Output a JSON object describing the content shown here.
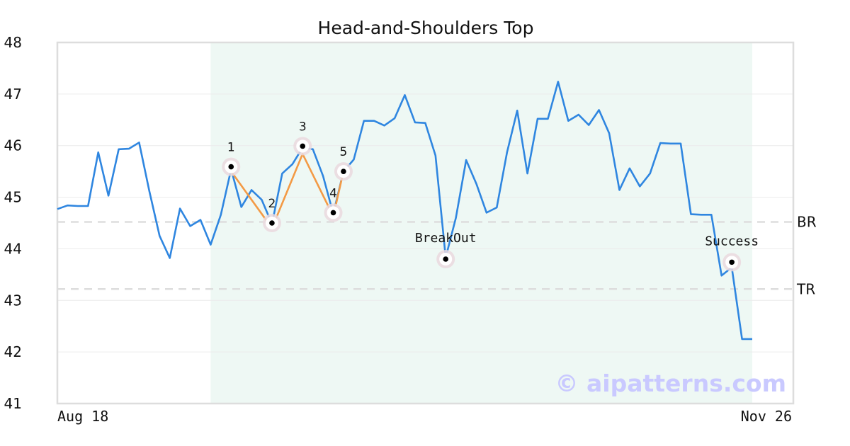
{
  "chart_data": {
    "type": "line",
    "title": "Head-and-Shoulders Top",
    "xlabel": "",
    "ylabel": "",
    "ylim": [
      41,
      48
    ],
    "yticks": [
      41,
      42,
      43,
      44,
      45,
      46,
      47,
      48
    ],
    "x_start_label": "Aug 18",
    "x_end_label": "Nov 26",
    "grid": true,
    "legend": "none",
    "colors": {
      "price": "#2f86e0",
      "pattern": "#f39a45",
      "highlight": "#e8f5f0",
      "marker_halo": "#ead9de",
      "level_line": "#dddddd",
      "watermark": "#c9c9ff",
      "frame": "#dddddd"
    },
    "series": [
      {
        "values": [
          44.77,
          44.84,
          44.83,
          44.83,
          45.87,
          45.03,
          45.93,
          45.94,
          46.06,
          45.12,
          44.25,
          43.82,
          44.78,
          44.44,
          44.56,
          44.08,
          44.66,
          45.54,
          44.81,
          45.14,
          44.95,
          44.48,
          45.46,
          45.64,
          45.96,
          45.93,
          45.41,
          44.68,
          45.5,
          45.73,
          46.48,
          46.48,
          46.39,
          46.53,
          46.98,
          46.45,
          46.44,
          45.81,
          43.83,
          44.6,
          45.72,
          45.26,
          44.7,
          44.8,
          45.87,
          46.68,
          45.46,
          46.52,
          46.52,
          47.24,
          46.48,
          46.6,
          46.4,
          46.69,
          46.24,
          45.14,
          45.56,
          45.21,
          45.46,
          46.05,
          46.04,
          46.04,
          44.67,
          44.66,
          44.66,
          43.48,
          43.64,
          42.25,
          42.25
        ]
      }
    ],
    "pattern_points": [
      {
        "label": "1",
        "index": 17,
        "value": 45.59
      },
      {
        "label": "2",
        "index": 21,
        "value": 44.5
      },
      {
        "label": "3",
        "index": 24,
        "value": 45.99
      },
      {
        "label": "4",
        "index": 27,
        "value": 44.7
      },
      {
        "label": "5",
        "index": 28,
        "value": 45.5
      }
    ],
    "pattern_line": [
      {
        "index": 17,
        "value": 45.5
      },
      {
        "index": 21,
        "value": 44.4
      },
      {
        "index": 24,
        "value": 45.84
      },
      {
        "index": 27,
        "value": 44.63
      },
      {
        "index": 28,
        "value": 45.5
      }
    ],
    "events": [
      {
        "label": "BreakOut",
        "index": 38,
        "value": 43.8
      },
      {
        "label": "Success",
        "index": 66,
        "value": 43.74
      }
    ],
    "levels": [
      {
        "label": "BR",
        "value": 44.52
      },
      {
        "label": "TR",
        "value": 43.22
      }
    ],
    "highlight_range": {
      "start_index": 15,
      "end_index": 68
    },
    "watermark": "© aipatterns.com"
  }
}
